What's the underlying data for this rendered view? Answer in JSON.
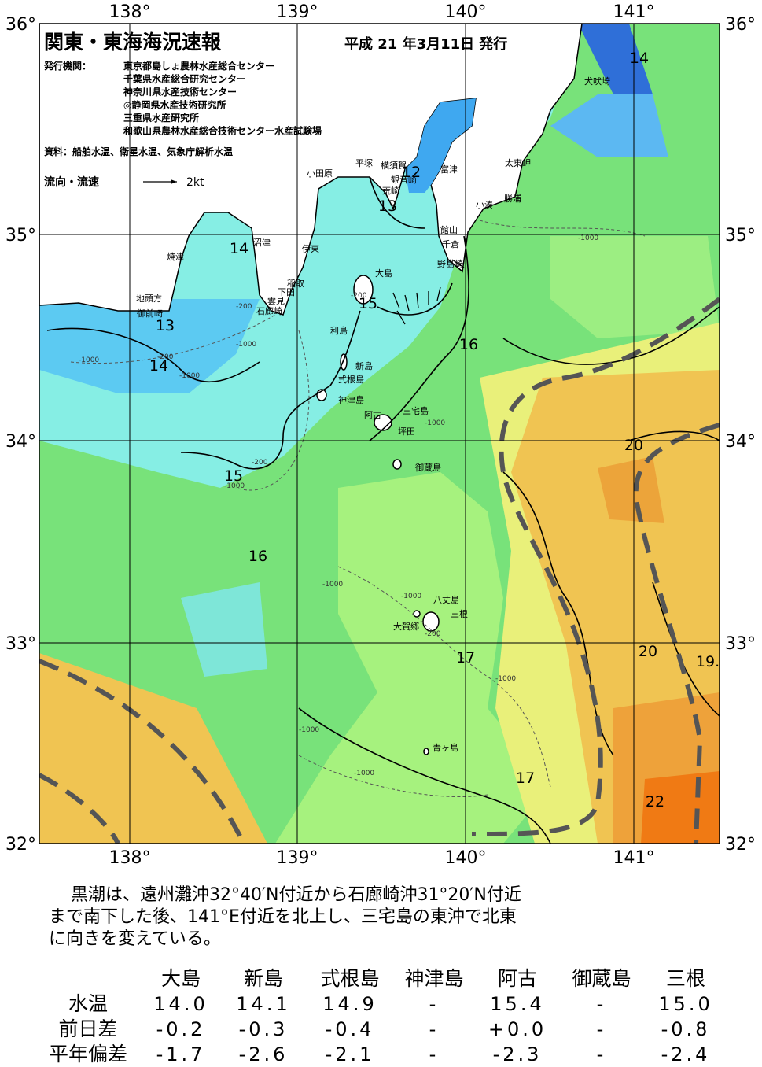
{
  "title": "関東・東海海況速報",
  "issued": "平成 21 年3月11日 発行",
  "agencies_label": "発行機関：",
  "agencies": [
    "東京都島しょ農林水産総合センター",
    "千葉県水産総合研究センター",
    "神奈川県水産技術センター",
    "◎静岡県水産技術研究所",
    "三重県水産研究所",
    "和歌山県農林水産総合技術センター水産試験場"
  ],
  "source": "資料：船舶水温、衛星水温、気象庁解析水温",
  "current_legend": {
    "label": "流向・流速",
    "scale": "2kt"
  },
  "lon_labels": [
    "138°",
    "139°",
    "140°",
    "141°"
  ],
  "lat_labels": [
    "36°",
    "35°",
    "34°",
    "33°",
    "32°"
  ],
  "place_labels": [
    "犬吠埼",
    "太東岬",
    "勝浦",
    "小湊",
    "富津",
    "横須賀",
    "平塚",
    "観音崎",
    "小田原",
    "荒崎",
    "館山",
    "千倉",
    "野島崎",
    "沼津",
    "伊東",
    "焼津",
    "大島",
    "稲取",
    "下田",
    "雲見",
    "石廊崎",
    "地頭方",
    "御前崎",
    "利島",
    "新島",
    "式根島",
    "神津島",
    "三宅島",
    "阿古",
    "坪田",
    "御蔵島",
    "八丈島",
    "三根",
    "大賀郷",
    "青ヶ島"
  ],
  "isotherm_labels": [
    "14",
    "12",
    "13",
    "14",
    "15",
    "13",
    "14",
    "16",
    "20",
    "15",
    "16",
    "17",
    "20",
    "19.",
    "17",
    "22"
  ],
  "depth_labels": [
    "-1000",
    "-200",
    "-200",
    "-1000",
    "-200",
    "-1000",
    "-1000",
    "-200",
    "-1000",
    "-1000",
    "-1000",
    "-1000",
    "-200",
    "-1000",
    "-1000",
    "-1000"
  ],
  "summary": [
    "黒潮は、遠州灘沖32°40′N付近から石廊崎沖31°20′N付近",
    "まで南下した後、141°E付近を北上し、三宅島の東沖で北東",
    "に向きを変えている。"
  ],
  "table": {
    "columns": [
      "大島",
      "新島",
      "式根島",
      "神津島",
      "阿古",
      "御蔵島",
      "三根"
    ],
    "rows": [
      {
        "label": "水温",
        "values": [
          "14.0",
          "14.1",
          "14.9",
          "-",
          "15.4",
          "-",
          "15.0"
        ]
      },
      {
        "label": "前日差",
        "values": [
          "-0.2",
          "-0.3",
          "-0.4",
          "-",
          "+0.0",
          "-",
          "-0.8"
        ]
      },
      {
        "label": "平年偏差",
        "values": [
          "-1.7",
          "-2.6",
          "-2.1",
          "-",
          "-2.3",
          "-",
          "-2.4"
        ]
      }
    ]
  }
}
